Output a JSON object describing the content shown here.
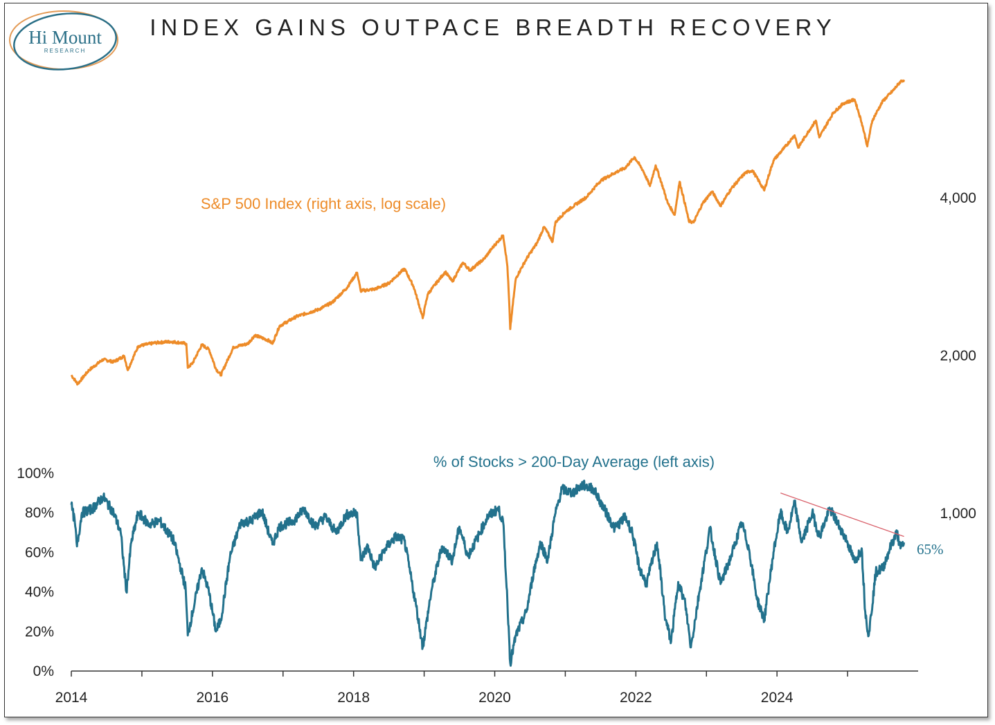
{
  "logo": {
    "name": "Hi Mount",
    "sub": "RESEARCH"
  },
  "colors": {
    "sp500": "#ed8b28",
    "breadth": "#22718c",
    "trendline": "#d9606a",
    "logo_ring": "#e39a55",
    "logo_ring2": "#2a6f87"
  },
  "chart_data": {
    "type": "line",
    "title": "INDEX GAINS OUTPACE BREADTH RECOVERY",
    "x_start": 2014.0,
    "x_end": 2025.8,
    "xlim": [
      2014,
      2026
    ],
    "xticks": [
      2014,
      2016,
      2018,
      2020,
      2022,
      2024
    ],
    "xtick_labels": [
      "2014",
      "2016",
      "2018",
      "2020",
      "2022",
      "2024"
    ],
    "right_axis": {
      "label": "S&P 500 Index (right axis, log scale)",
      "scale": "log",
      "ylim": [
        370,
        7000
      ],
      "ticks": [
        1000,
        2000,
        4000
      ],
      "tick_labels": [
        "1,000",
        "2,000",
        "4,000"
      ]
    },
    "left_axis": {
      "label": "% of Stocks > 200-Day Average (left axis)",
      "ylim": [
        0,
        100
      ],
      "ticks": [
        0,
        20,
        40,
        60,
        80,
        100
      ],
      "tick_labels": [
        "0%",
        "20%",
        "40%",
        "60%",
        "80%",
        "100%"
      ]
    },
    "series": [
      {
        "name": "S&P 500 Index",
        "axis": "right",
        "points": [
          [
            2014.0,
            1830
          ],
          [
            2014.09,
            1760
          ],
          [
            2014.25,
            1870
          ],
          [
            2014.45,
            1960
          ],
          [
            2014.6,
            1940
          ],
          [
            2014.75,
            1990
          ],
          [
            2014.8,
            1870
          ],
          [
            2014.95,
            2080
          ],
          [
            2015.2,
            2110
          ],
          [
            2015.4,
            2120
          ],
          [
            2015.55,
            2110
          ],
          [
            2015.63,
            2100
          ],
          [
            2015.65,
            1890
          ],
          [
            2015.72,
            1930
          ],
          [
            2015.85,
            2090
          ],
          [
            2015.95,
            2050
          ],
          [
            2016.05,
            1880
          ],
          [
            2016.12,
            1830
          ],
          [
            2016.3,
            2070
          ],
          [
            2016.5,
            2100
          ],
          [
            2016.6,
            2180
          ],
          [
            2016.8,
            2130
          ],
          [
            2016.85,
            2100
          ],
          [
            2016.95,
            2270
          ],
          [
            2017.2,
            2370
          ],
          [
            2017.5,
            2440
          ],
          [
            2017.7,
            2520
          ],
          [
            2017.9,
            2680
          ],
          [
            2018.05,
            2870
          ],
          [
            2018.1,
            2650
          ],
          [
            2018.3,
            2670
          ],
          [
            2018.5,
            2740
          ],
          [
            2018.72,
            2920
          ],
          [
            2018.85,
            2700
          ],
          [
            2018.98,
            2350
          ],
          [
            2019.05,
            2610
          ],
          [
            2019.3,
            2880
          ],
          [
            2019.4,
            2760
          ],
          [
            2019.55,
            3000
          ],
          [
            2019.65,
            2900
          ],
          [
            2019.85,
            3050
          ],
          [
            2019.99,
            3230
          ],
          [
            2020.12,
            3380
          ],
          [
            2020.18,
            2950
          ],
          [
            2020.22,
            2240
          ],
          [
            2020.3,
            2800
          ],
          [
            2020.45,
            3050
          ],
          [
            2020.6,
            3270
          ],
          [
            2020.7,
            3510
          ],
          [
            2020.82,
            3290
          ],
          [
            2020.86,
            3580
          ],
          [
            2021.0,
            3750
          ],
          [
            2021.3,
            4000
          ],
          [
            2021.5,
            4300
          ],
          [
            2021.7,
            4450
          ],
          [
            2021.85,
            4550
          ],
          [
            2021.98,
            4770
          ],
          [
            2022.1,
            4500
          ],
          [
            2022.2,
            4200
          ],
          [
            2022.28,
            4600
          ],
          [
            2022.45,
            3900
          ],
          [
            2022.55,
            3700
          ],
          [
            2022.62,
            4280
          ],
          [
            2022.75,
            3600
          ],
          [
            2022.82,
            3580
          ],
          [
            2022.95,
            3900
          ],
          [
            2023.08,
            4100
          ],
          [
            2023.2,
            3850
          ],
          [
            2023.35,
            4150
          ],
          [
            2023.55,
            4450
          ],
          [
            2023.65,
            4500
          ],
          [
            2023.82,
            4120
          ],
          [
            2023.95,
            4700
          ],
          [
            2024.1,
            4960
          ],
          [
            2024.25,
            5250
          ],
          [
            2024.3,
            4970
          ],
          [
            2024.55,
            5600
          ],
          [
            2024.6,
            5200
          ],
          [
            2024.8,
            5800
          ],
          [
            2024.95,
            6050
          ],
          [
            2025.1,
            6140
          ],
          [
            2025.2,
            5550
          ],
          [
            2025.28,
            5000
          ],
          [
            2025.35,
            5600
          ],
          [
            2025.5,
            6100
          ],
          [
            2025.65,
            6400
          ],
          [
            2025.75,
            6650
          ],
          [
            2025.8,
            6700
          ]
        ]
      },
      {
        "name": "% of Stocks > 200-Day Average",
        "axis": "left",
        "points": [
          [
            2014.0,
            84
          ],
          [
            2014.05,
            75
          ],
          [
            2014.08,
            63
          ],
          [
            2014.15,
            80
          ],
          [
            2014.3,
            82
          ],
          [
            2014.45,
            88
          ],
          [
            2014.6,
            80
          ],
          [
            2014.7,
            70
          ],
          [
            2014.78,
            40
          ],
          [
            2014.85,
            65
          ],
          [
            2014.95,
            80
          ],
          [
            2015.1,
            74
          ],
          [
            2015.25,
            76
          ],
          [
            2015.45,
            66
          ],
          [
            2015.55,
            52
          ],
          [
            2015.62,
            42
          ],
          [
            2015.65,
            18
          ],
          [
            2015.72,
            30
          ],
          [
            2015.85,
            52
          ],
          [
            2015.95,
            40
          ],
          [
            2016.05,
            20
          ],
          [
            2016.12,
            26
          ],
          [
            2016.25,
            58
          ],
          [
            2016.4,
            75
          ],
          [
            2016.55,
            76
          ],
          [
            2016.7,
            81
          ],
          [
            2016.85,
            64
          ],
          [
            2016.95,
            73
          ],
          [
            2017.15,
            76
          ],
          [
            2017.3,
            82
          ],
          [
            2017.45,
            73
          ],
          [
            2017.6,
            78
          ],
          [
            2017.75,
            70
          ],
          [
            2017.9,
            79
          ],
          [
            2018.05,
            80
          ],
          [
            2018.1,
            56
          ],
          [
            2018.2,
            63
          ],
          [
            2018.3,
            52
          ],
          [
            2018.45,
            62
          ],
          [
            2018.6,
            68
          ],
          [
            2018.72,
            66
          ],
          [
            2018.8,
            50
          ],
          [
            2018.9,
            30
          ],
          [
            2018.98,
            12
          ],
          [
            2019.1,
            40
          ],
          [
            2019.25,
            63
          ],
          [
            2019.4,
            56
          ],
          [
            2019.5,
            73
          ],
          [
            2019.62,
            58
          ],
          [
            2019.75,
            67
          ],
          [
            2019.9,
            78
          ],
          [
            2020.05,
            82
          ],
          [
            2020.12,
            75
          ],
          [
            2020.18,
            35
          ],
          [
            2020.22,
            4
          ],
          [
            2020.3,
            18
          ],
          [
            2020.45,
            30
          ],
          [
            2020.55,
            50
          ],
          [
            2020.65,
            65
          ],
          [
            2020.75,
            56
          ],
          [
            2020.85,
            78
          ],
          [
            2020.95,
            92
          ],
          [
            2021.1,
            90
          ],
          [
            2021.25,
            94
          ],
          [
            2021.4,
            92
          ],
          [
            2021.55,
            82
          ],
          [
            2021.7,
            72
          ],
          [
            2021.85,
            78
          ],
          [
            2021.95,
            70
          ],
          [
            2022.05,
            52
          ],
          [
            2022.15,
            44
          ],
          [
            2022.3,
            65
          ],
          [
            2022.42,
            26
          ],
          [
            2022.5,
            15
          ],
          [
            2022.6,
            45
          ],
          [
            2022.7,
            34
          ],
          [
            2022.78,
            12
          ],
          [
            2022.9,
            40
          ],
          [
            2023.05,
            72
          ],
          [
            2023.2,
            44
          ],
          [
            2023.35,
            58
          ],
          [
            2023.5,
            75
          ],
          [
            2023.6,
            62
          ],
          [
            2023.72,
            36
          ],
          [
            2023.82,
            26
          ],
          [
            2023.95,
            60
          ],
          [
            2024.05,
            80
          ],
          [
            2024.15,
            70
          ],
          [
            2024.25,
            85
          ],
          [
            2024.35,
            65
          ],
          [
            2024.5,
            80
          ],
          [
            2024.6,
            68
          ],
          [
            2024.75,
            82
          ],
          [
            2024.9,
            72
          ],
          [
            2025.0,
            65
          ],
          [
            2025.1,
            55
          ],
          [
            2025.2,
            62
          ],
          [
            2025.25,
            30
          ],
          [
            2025.3,
            18
          ],
          [
            2025.4,
            50
          ],
          [
            2025.5,
            52
          ],
          [
            2025.6,
            62
          ],
          [
            2025.7,
            70
          ],
          [
            2025.75,
            62
          ],
          [
            2025.8,
            65
          ]
        ],
        "end_label": "65%"
      }
    ],
    "trendline": {
      "from": [
        2024.05,
        90
      ],
      "to": [
        2025.8,
        68
      ]
    }
  }
}
